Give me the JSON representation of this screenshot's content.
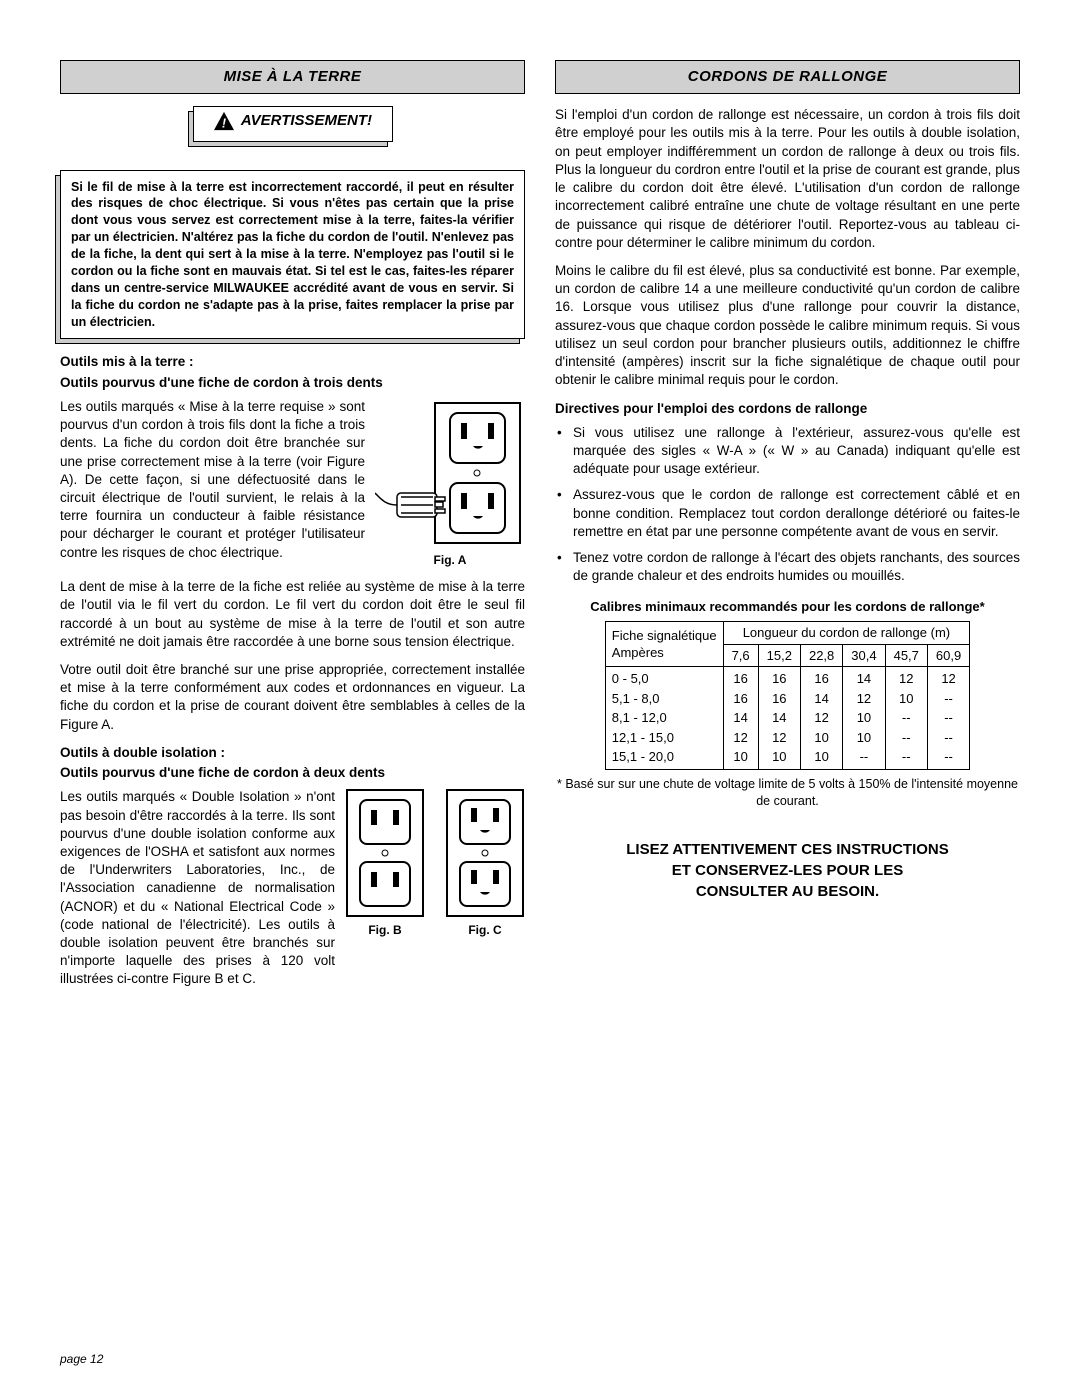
{
  "left": {
    "header": "MISE À LA TERRE",
    "warning_label": "AVERTISSEMENT!",
    "notice_html": "Si le fil de mise à la terre est incorrectement raccordé, il peut en résulter des risques de choc électrique. Si vous n'êtes pas certain que la prise dont vous vous servez est correctement mise à la terre, faites-la vérifier par un électricien. N'altérez pas la fiche du cordon de l'outil. N'enlevez pas de la fiche, la dent qui sert à la mise à la terre. N'employez pas l'outil si le cordon ou la fiche sont en mauvais état. Si tel est le cas, faites-les réparer dans un centre-service MILWAUKEE accrédité avant de vous en servir. Si la fiche du cordon ne s'adapte pas à la prise, faites remplacer la prise par un électricien.",
    "sub1_a": "Outils mis à la terre :",
    "sub1_b": "Outils pourvus d'une fiche de cordon à trois dents",
    "p1": "Les outils marqués « Mise à la terre requise » sont pourvus d'un cordon à trois fils dont la fiche a trois dents. La fiche du cordon doit être branchée sur une prise correctement mise à la terre (voir Figure A). De cette façon, si une défectuosité dans le circuit électrique de l'outil survient, le relais à la terre fournira un conducteur à faible résistance pour décharger le courant et protéger l'utilisateur contre les risques de choc électrique.",
    "figA": "Fig. A",
    "p2": "La dent de mise à la terre de la fiche est reliée au système de mise à la terre de l'outil via le fil vert du cordon. Le fil vert du cordon doit être le seul fil raccordé à un bout au système de mise à la terre de l'outil et son autre extrémité ne doit jamais être raccordée à une borne sous tension électrique.",
    "p3": "Votre outil doit être branché sur une prise appropriée, correctement installée et mise à la terre conformément aux codes et ordonnances en vigueur. La fiche du cordon et la prise de courant doivent être semblables à celles de la Figure A.",
    "sub2_a": "Outils à double isolation :",
    "sub2_b": "Outils pourvus d'une fiche de cordon à deux dents",
    "p4": "Les outils marqués « Double Isolation » n'ont pas besoin d'être raccordés à la terre. Ils sont pourvus d'une double isolation conforme aux exigences de l'OSHA et satisfont aux normes de l'Underwriters Laboratories, Inc., de l'Association canadienne de normalisation (ACNOR) et du « National Electrical Code » (code national de l'électricité). Les outils à double isolation peuvent être branchés sur n'importe laquelle des prises à 120 volt illustrées ci-contre Figure B et C.",
    "figB": "Fig. B",
    "figC": "Fig. C"
  },
  "right": {
    "header": "CORDONS DE RALLONGE",
    "p1": "Si l'emploi d'un cordon de rallonge est nécessaire, un cordon à trois fils doit être employé pour les outils mis à la terre. Pour les outils à double isolation, on peut employer indifféremment un cordon de rallonge à deux ou trois fils. Plus la longueur du cordron entre l'outil et la prise de courant est grande, plus le calibre du cordon doit être élevé. L'utilisation d'un cordon de rallonge incorrectement calibré entraîne une chute de voltage résultant en une perte de puissance qui risque de détériorer l'outil. Reportez-vous au tableau ci-contre pour déterminer le calibre minimum du cordon.",
    "p2": "Moins le calibre du fil est élevé, plus sa conductivité est bonne. Par exemple, un cordon de calibre 14 a une meilleure conductivité qu'un cordon de calibre 16. Lorsque vous utilisez plus d'une rallonge pour couvrir la distance, assurez-vous que chaque cordon possède le calibre minimum requis. Si vous utilisez un seul cordon pour brancher plusieurs outils, additionnez le chiffre d'intensité (ampères) inscrit sur la fiche signalétique de chaque outil pour obtenir le calibre minimal requis pour le cordon.",
    "sub1": "Directives pour l'emploi des cordons de rallonge",
    "bullets": [
      "Si vous utilisez une rallonge à l'extérieur, assurez-vous qu'elle est marquée des sigles « W-A » (« W » au Canada) indiquant qu'elle est adéquate pour usage extérieur.",
      "Assurez-vous que le cordon de rallonge est correctement câblé et en bonne condition. Remplacez tout cordon derallonge détérioré ou faites-le remettre en état par une personne compétente avant de vous en servir.",
      "Tenez votre cordon de rallonge à l'écart des objets ranchants, des sources de grande chaleur et des endroits humides ou mouillés."
    ],
    "table_title": "Calibres minimaux recommandés pour les cordons de rallonge*",
    "table": {
      "col_header_top": "Fiche signalétique",
      "col_header_bottom": "Ampères",
      "row_header": "Longueur du cordon de rallonge (m)",
      "lengths": [
        "7,6",
        "15,2",
        "22,8",
        "30,4",
        "45,7",
        "60,9"
      ],
      "rows": [
        {
          "label": "0 - 5,0",
          "v": [
            "16",
            "16",
            "16",
            "14",
            "12",
            "12"
          ]
        },
        {
          "label": "5,1 - 8,0",
          "v": [
            "16",
            "16",
            "14",
            "12",
            "10",
            "--"
          ]
        },
        {
          "label": "8,1 - 12,0",
          "v": [
            "14",
            "14",
            "12",
            "10",
            "--",
            "--"
          ]
        },
        {
          "label": "12,1 - 15,0",
          "v": [
            "12",
            "12",
            "10",
            "10",
            "--",
            "--"
          ]
        },
        {
          "label": "15,1 - 20,0",
          "v": [
            "10",
            "10",
            "10",
            "--",
            "--",
            "--"
          ]
        }
      ]
    },
    "table_foot": "* Basé sur sur une chute de voltage limite de 5 volts à 150% de l'intensité moyenne de courant.",
    "final": "LISEZ ATTENTIVEMENT CES INSTRUCTIONS ET CONSERVEZ-LES POUR LES CONSULTER AU BESOIN."
  },
  "page": "page 12",
  "colors": {
    "header_bg": "#d0d0d0",
    "border": "#000000",
    "text": "#000000"
  }
}
